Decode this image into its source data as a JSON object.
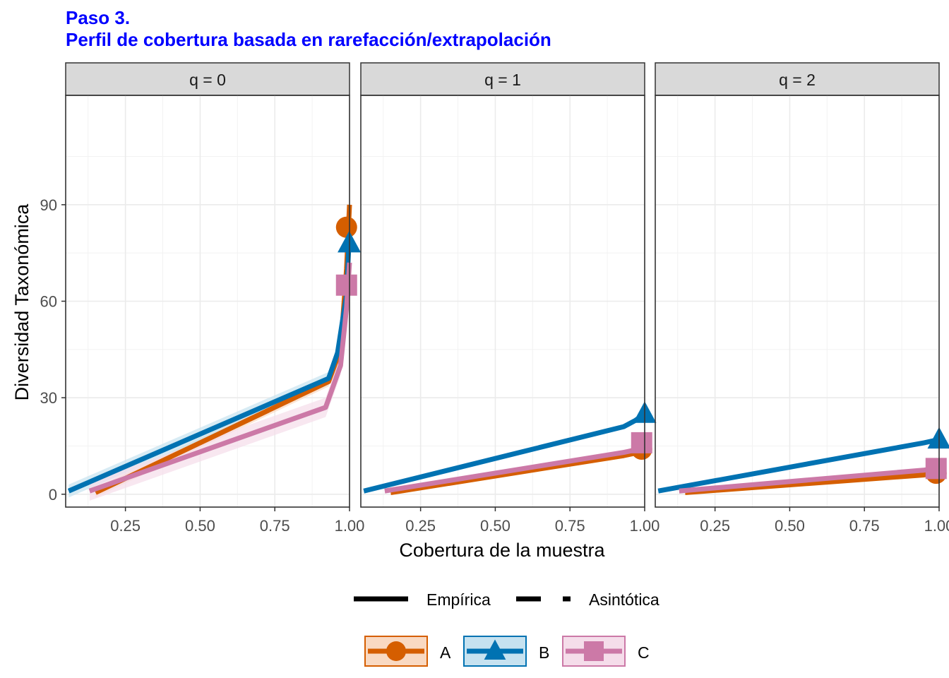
{
  "chart_data": {
    "type": "line",
    "title": "Paso 3.",
    "subtitle": "Perfil de cobertura basada en rarefacción/extrapolación",
    "xlabel": "Cobertura de la muestra",
    "ylabel": "Diversidad Taxonómica",
    "xlim": [
      0.05,
      1.0
    ],
    "ylim": [
      -4,
      124
    ],
    "x_ticks": [
      0.25,
      0.5,
      0.75,
      1.0
    ],
    "x_tick_labels": [
      "0.25",
      "0.50",
      "0.75",
      "1.00"
    ],
    "y_ticks": [
      0,
      30,
      60,
      90
    ],
    "y_tick_labels": [
      "0",
      "30",
      "60",
      "90"
    ],
    "grid": true,
    "legend_position": "bottom",
    "linetype_legend": [
      {
        "label": "Empírica",
        "style": "solid"
      },
      {
        "label": "Asintótica",
        "style": "dashed"
      }
    ],
    "series_legend": [
      {
        "label": "A",
        "color": "#D55E00",
        "fill": "#F9D9C2",
        "shape": "circle"
      },
      {
        "label": "B",
        "color": "#0072B2",
        "fill": "#C6E2F0",
        "shape": "triangle"
      },
      {
        "label": "C",
        "color": "#CC79A7",
        "fill": "#F5DDEA",
        "shape": "square"
      }
    ],
    "panels": [
      {
        "label": "q = 0",
        "series": [
          {
            "name": "A",
            "x": [
              0.15,
              0.93,
              0.97,
              0.99,
              1.0
            ],
            "y": [
              0.5,
              35,
              45,
              70,
              90
            ],
            "ribbon": 1.5,
            "observed": {
              "x": 0.99,
              "y": 83
            }
          },
          {
            "name": "B",
            "x": [
              0.06,
              0.93,
              0.96,
              0.99,
              1.0
            ],
            "y": [
              1,
              36,
              44,
              62,
              82
            ],
            "ribbon": 2,
            "observed": {
              "x": 0.999,
              "y": 78
            }
          },
          {
            "name": "C",
            "x": [
              0.13,
              0.92,
              0.97,
              0.99,
              1.0
            ],
            "y": [
              1,
              27,
              40,
              58,
              72
            ],
            "ribbon": 3,
            "observed": {
              "x": 0.99,
              "y": 65
            }
          }
        ]
      },
      {
        "label": "q = 1",
        "series": [
          {
            "name": "A",
            "x": [
              0.15,
              0.93,
              0.98,
              0.99
            ],
            "y": [
              0.5,
              12,
              13,
              14
            ],
            "ribbon": 0.8,
            "observed": {
              "x": 0.99,
              "y": 14
            }
          },
          {
            "name": "B",
            "x": [
              0.06,
              0.93,
              0.97,
              1.0
            ],
            "y": [
              1,
              21,
              23,
              25
            ],
            "ribbon": 0.8,
            "observed": {
              "x": 1.0,
              "y": 25
            }
          },
          {
            "name": "C",
            "x": [
              0.13,
              0.93,
              0.98,
              0.99
            ],
            "y": [
              1,
              13,
              14,
              16
            ],
            "ribbon": 0.8,
            "observed": {
              "x": 0.99,
              "y": 16
            }
          }
        ]
      },
      {
        "label": "q = 2",
        "series": [
          {
            "name": "A",
            "x": [
              0.15,
              0.95,
              0.99
            ],
            "y": [
              0.5,
              6,
              6.5
            ],
            "ribbon": 0.5,
            "observed": {
              "x": 0.99,
              "y": 6.5
            }
          },
          {
            "name": "B",
            "x": [
              0.06,
              0.95,
              1.0
            ],
            "y": [
              1,
              16,
              17
            ],
            "ribbon": 0.5,
            "observed": {
              "x": 1.0,
              "y": 17
            }
          },
          {
            "name": "C",
            "x": [
              0.13,
              0.95,
              0.99
            ],
            "y": [
              1,
              7.5,
              8
            ],
            "ribbon": 0.5,
            "observed": {
              "x": 0.99,
              "y": 8
            }
          }
        ]
      }
    ]
  }
}
